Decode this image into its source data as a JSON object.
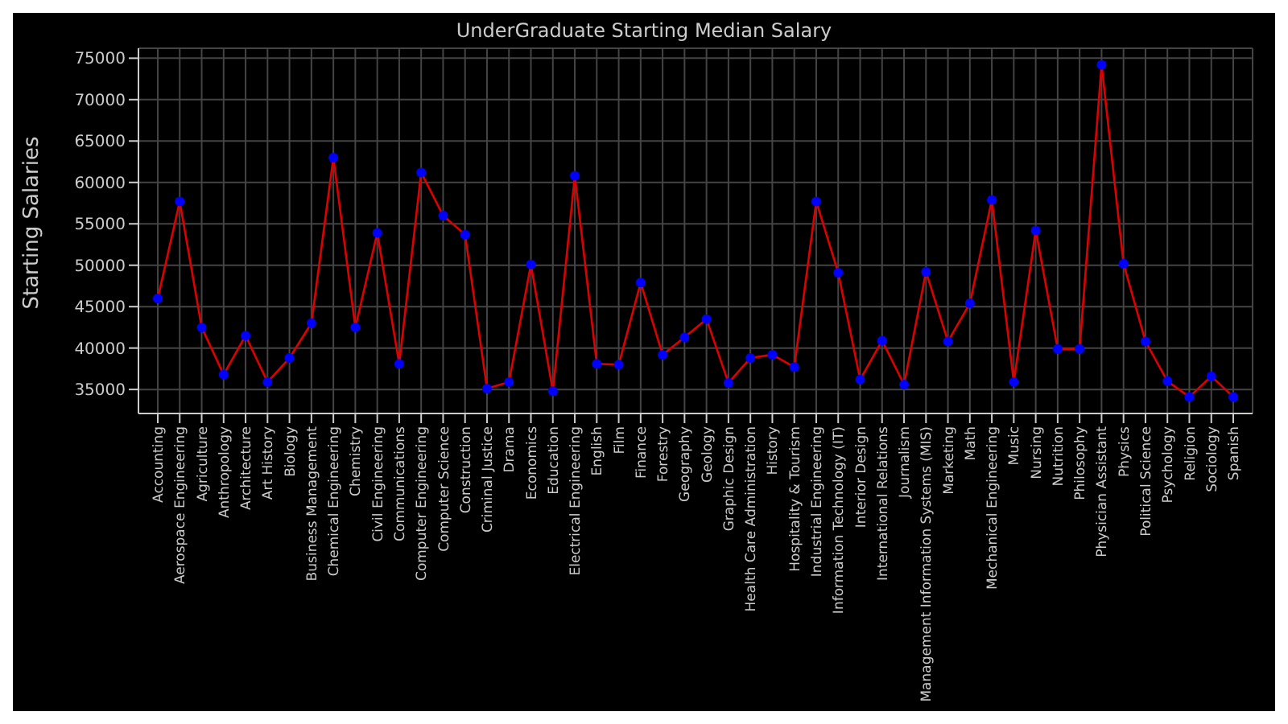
{
  "chart_data": {
    "type": "line",
    "title": "UnderGraduate Starting Median Salary",
    "ylabel": "Starting Salaries",
    "categories": [
      "Accounting",
      "Aerospace Engineering",
      "Agriculture",
      "Anthropology",
      "Architecture",
      "Art History",
      "Biology",
      "Business Management",
      "Chemical Engineering",
      "Chemistry",
      "Civil Engineering",
      "Communications",
      "Computer Engineering",
      "Computer Science",
      "Construction",
      "Criminal Justice",
      "Drama",
      "Economics",
      "Education",
      "Electrical Engineering",
      "English",
      "Film",
      "Finance",
      "Forestry",
      "Geography",
      "Geology",
      "Graphic Design",
      "Health Care Administration",
      "History",
      "Hospitality & Tourism",
      "Industrial Engineering",
      "Information Technology (IT)",
      "Interior Design",
      "International Relations",
      "Journalism",
      "Management Information Systems (MIS)",
      "Marketing",
      "Math",
      "Mechanical Engineering",
      "Music",
      "Nursing",
      "Nutrition",
      "Philosophy",
      "Physician Assistant",
      "Physics",
      "Political Science",
      "Psychology",
      "Religion",
      "Sociology",
      "Spanish"
    ],
    "series": [
      {
        "color": "#dd0000",
        "colors": [
          "#0000ff",
          "#0000ff",
          "#0000ff",
          "#0000ff",
          "#0000ff",
          "#0000ff",
          "#0000ff",
          "#0000ff",
          "#0000ff",
          "#0000ff",
          "#0000ff",
          "#0000ff",
          "#0000ff",
          "#0000ff",
          "#0000ff",
          "#0000ff",
          "#0000ff",
          "#0000ff",
          "#0000ff",
          "#0000ff",
          "#0000ff",
          "#0000ff",
          "#0000ff",
          "#0000ff",
          "#0000ff",
          "#0000ff",
          "#0000ff",
          "#0000ff",
          "#0000ff",
          "#0000ff",
          "#0000ff",
          "#0000ff",
          "#0000ff",
          "#0000ff",
          "#0000ff",
          "#0000ff",
          "#0000ff",
          "#0000ff",
          "#0000ff",
          "#0000ff",
          "#0000ff",
          "#0000ff",
          "#0000ff",
          "#0000ff",
          "#0000ff",
          "#0000ff",
          "#0000ff",
          "#0000ff",
          "#0000ff",
          "#0000ff"
        ],
        "values": [
          46000,
          57700,
          42500,
          36800,
          41500,
          35900,
          38800,
          43000,
          63000,
          42500,
          53900,
          38100,
          61200,
          56000,
          53700,
          35100,
          35900,
          50100,
          34800,
          60800,
          38100,
          38000,
          47900,
          39200,
          41300,
          43500,
          35800,
          38800,
          39200,
          37700,
          57700,
          49100,
          36200,
          40900,
          35600,
          49200,
          40800,
          45400,
          57900,
          35900,
          54200,
          39900,
          39900,
          74200,
          50200,
          40800,
          36000,
          34100,
          36600,
          34100
        ]
      }
    ],
    "ylim": [
      32100,
      76200
    ],
    "yticks": [
      35000,
      40000,
      45000,
      50000,
      55000,
      60000,
      65000,
      70000,
      75000
    ],
    "grid": true,
    "marker": "circle",
    "line_style": "solid"
  }
}
